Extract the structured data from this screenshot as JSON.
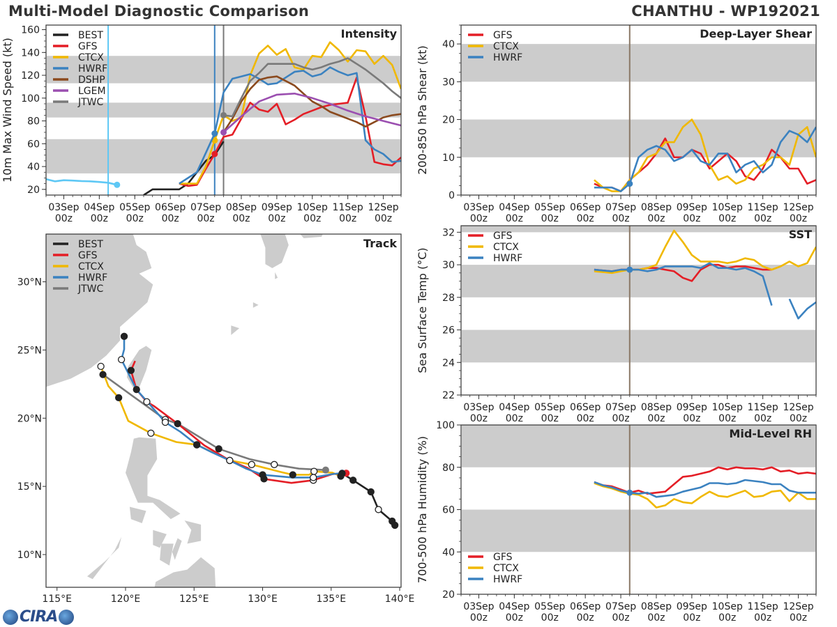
{
  "header": {
    "title": "Multi-Model Diagnostic Comparison",
    "storm": "CHANTHU - WP192021"
  },
  "logo": {
    "text": "CIRA"
  },
  "colors": {
    "BEST": "#222222",
    "GFS": "#e41e26",
    "CTCX": "#f0b800",
    "HWRF": "#3b82c0",
    "DSHP": "#8b4a1e",
    "LGEM": "#9b4fb0",
    "JTWC": "#7a7a7a",
    "prior_HWRF": "#5ec8f5",
    "band": "#cccccc",
    "init_line": "#8a7866"
  },
  "time_ticks": [
    {
      "date": "03Sep",
      "hour": "00z"
    },
    {
      "date": "04Sep",
      "hour": "00z"
    },
    {
      "date": "05Sep",
      "hour": "00z"
    },
    {
      "date": "06Sep",
      "hour": "00z"
    },
    {
      "date": "07Sep",
      "hour": "00z"
    },
    {
      "date": "08Sep",
      "hour": "00z"
    },
    {
      "date": "09Sep",
      "hour": "00z"
    },
    {
      "date": "10Sep",
      "hour": "00z"
    },
    {
      "date": "11Sep",
      "hour": "00z"
    },
    {
      "date": "12Sep",
      "hour": "00z"
    }
  ],
  "chart_data": [
    {
      "id": "intensity",
      "type": "line",
      "title": "Intensity",
      "ylabel": "10m Max Wind Speed (kt)",
      "xlim": [
        "02Sep12z",
        "12Sep12z"
      ],
      "ylim": [
        15,
        164
      ],
      "yticks": [
        20,
        40,
        60,
        80,
        100,
        120,
        140,
        160
      ],
      "bands": [
        [
          34,
          64
        ],
        [
          83,
          96
        ],
        [
          113,
          137
        ]
      ],
      "legend": "top-left",
      "vlines": [
        {
          "time": "04Sep06z",
          "color": "#5ec8f5"
        },
        {
          "time": "07Sep06z",
          "color": "#3b82c0"
        },
        {
          "time": "07Sep12z",
          "color": "#7a7a7a"
        }
      ],
      "series": [
        {
          "color": "#5ec8f5",
          "start": "02Sep12z",
          "step_h": 6,
          "values": [
            29,
            27,
            28,
            27.7,
            27.3,
            27,
            26.5,
            25.8,
            24
          ],
          "marker": "end",
          "legend": false
        },
        {
          "name": "BEST",
          "color": "#222222",
          "start": "05Sep06z",
          "step_h": 6,
          "values": [
            15,
            20,
            20,
            20,
            20,
            25,
            35,
            45,
            50,
            62
          ]
        },
        {
          "name": "GFS",
          "color": "#e41e26",
          "start": "06Sep06z",
          "step_h": 6,
          "values": [
            25,
            23,
            24,
            38,
            51,
            66,
            68,
            82,
            96,
            90,
            88,
            95,
            77,
            81,
            86,
            89,
            92,
            94,
            95,
            96,
            118,
            84,
            44,
            42,
            41,
            48
          ],
          "marker_time": "07Sep06z"
        },
        {
          "name": "CTCX",
          "color": "#f0b800",
          "start": "06Sep06z",
          "step_h": 6,
          "values": [
            25,
            25,
            25,
            40,
            63,
            85,
            80,
            83,
            120,
            139,
            146,
            138,
            143,
            127,
            125,
            137,
            136,
            149,
            142,
            132,
            142,
            141,
            130,
            137,
            129,
            108
          ],
          "marker_time": "07Sep06z"
        },
        {
          "name": "HWRF",
          "color": "#3b82c0",
          "start": "06Sep06z",
          "step_h": 6,
          "values": [
            25,
            30,
            35,
            52,
            69,
            105,
            117,
            119,
            121,
            117,
            112,
            113,
            118,
            123,
            124,
            119,
            121,
            127,
            123,
            120,
            122,
            63,
            55,
            51,
            44,
            45
          ],
          "marker_time": "07Sep06z"
        },
        {
          "name": "DSHP",
          "color": "#8b4a1e",
          "start": "07Sep12z",
          "step_h": 6,
          "values": [
            70,
            82,
            97,
            108,
            116,
            118,
            119,
            115,
            111,
            104,
            97,
            93,
            88,
            85,
            82,
            79,
            75,
            79,
            83,
            85,
            86
          ]
        },
        {
          "name": "LGEM",
          "color": "#9b4fb0",
          "start": "07Sep12z",
          "step_h": 12,
          "values": [
            70,
            84,
            97,
            103,
            104,
            100,
            95,
            89,
            84,
            80,
            76
          ],
          "marker_time": "07Sep12z"
        },
        {
          "name": "JTWC",
          "color": "#7a7a7a",
          "start": "07Sep12z",
          "step_h": 6,
          "values": [
            85,
            84,
            100,
            115,
            122,
            130,
            130,
            130,
            130,
            127,
            125,
            127,
            130,
            132,
            135,
            130,
            125,
            119,
            113,
            106,
            100,
            94,
            89
          ],
          "marker_time": "07Sep12z"
        }
      ]
    },
    {
      "id": "shear",
      "type": "line",
      "title": "Deep-Layer Shear",
      "ylabel": "200-850 hPa Shear (kt)",
      "xlim": [
        "02Sep12z",
        "12Sep12z"
      ],
      "ylim": [
        0,
        45
      ],
      "yticks": [
        0,
        10,
        20,
        30,
        40
      ],
      "bands": [
        [
          10,
          20
        ],
        [
          30,
          40
        ]
      ],
      "legend": "top-left",
      "vlines": [
        {
          "time": "07Sep06z",
          "color": "#8a7866"
        }
      ],
      "series": [
        {
          "name": "GFS",
          "color": "#e41e26",
          "start": "06Sep06z",
          "step_h": 6,
          "values": [
            3,
            2,
            2,
            1,
            4,
            6,
            8,
            11,
            15,
            10,
            10,
            12,
            11,
            7,
            9,
            11,
            9,
            5,
            4,
            7,
            12,
            10,
            7,
            7,
            3,
            4
          ]
        },
        {
          "name": "CTCX",
          "color": "#f0b800",
          "start": "06Sep06z",
          "step_h": 6,
          "values": [
            4,
            2,
            1,
            1,
            4,
            6,
            10,
            11,
            14,
            14,
            18,
            20,
            16,
            8,
            4,
            5,
            3,
            4,
            7,
            8,
            10,
            10,
            8,
            16,
            18,
            10
          ]
        },
        {
          "name": "HWRF",
          "color": "#3b82c0",
          "start": "06Sep06z",
          "step_h": 6,
          "values": [
            2,
            2,
            2,
            1,
            3,
            10,
            12,
            13,
            12,
            9,
            10,
            12,
            9,
            8,
            11,
            11,
            6,
            8,
            9,
            6,
            8,
            14,
            17,
            16,
            14,
            18
          ],
          "marker_time": "07Sep06z"
        }
      ]
    },
    {
      "id": "sst",
      "type": "line",
      "title": "SST",
      "ylabel": "Sea Surface Temp (°C)",
      "xlim": [
        "02Sep12z",
        "12Sep12z"
      ],
      "ylim": [
        22,
        32.4
      ],
      "yticks": [
        22,
        24,
        26,
        28,
        30,
        32
      ],
      "bands": [
        [
          24,
          26
        ],
        [
          28,
          30
        ],
        [
          32,
          32.4
        ]
      ],
      "legend": "top-left",
      "vlines": [
        {
          "time": "07Sep06z",
          "color": "#8a7866"
        }
      ],
      "series": [
        {
          "name": "GFS",
          "color": "#e41e26",
          "start": "06Sep06z",
          "step_h": 6,
          "values": [
            29.7,
            29.65,
            29.6,
            29.7,
            29.7,
            29.7,
            29.8,
            29.8,
            29.7,
            29.6,
            29.2,
            29.0,
            29.7,
            30.0,
            30.0,
            29.8,
            29.9,
            29.9,
            29.8,
            29.7,
            29.7
          ]
        },
        {
          "name": "CTCX",
          "color": "#f0b800",
          "start": "06Sep06z",
          "step_h": 6,
          "values": [
            29.6,
            29.55,
            29.5,
            29.6,
            29.7,
            29.7,
            29.8,
            30.0,
            31.1,
            32.1,
            31.4,
            30.6,
            30.2,
            30.2,
            30.2,
            30.1,
            30.2,
            30.4,
            30.3,
            29.9,
            29.7,
            29.9,
            30.2,
            29.9,
            30.1,
            31.1
          ]
        },
        {
          "name": "HWRF",
          "color": "#3b82c0",
          "start": "06Sep06z",
          "step_h": 6,
          "values": [
            29.7,
            29.65,
            29.6,
            29.7,
            29.7,
            29.7,
            29.6,
            29.7,
            29.9,
            29.9,
            29.9,
            29.9,
            29.8,
            30.1,
            29.8,
            29.8,
            29.7,
            29.8,
            29.6,
            29.3,
            27.5,
            null,
            27.9,
            26.7,
            27.3,
            27.7
          ],
          "marker_time": "07Sep06z"
        }
      ]
    },
    {
      "id": "rh",
      "type": "line",
      "title": "Mid-Level RH",
      "ylabel": "700-500 hPa Humidity (%)",
      "xlim": [
        "02Sep12z",
        "12Sep12z"
      ],
      "ylim": [
        20,
        100
      ],
      "yticks": [
        20,
        40,
        60,
        80,
        100
      ],
      "bands": [
        [
          40,
          60
        ],
        [
          80,
          100
        ]
      ],
      "legend": "bottom-left",
      "vlines": [
        {
          "time": "07Sep06z",
          "color": "#8a7866"
        }
      ],
      "series": [
        {
          "name": "GFS",
          "color": "#e41e26",
          "start": "06Sep06z",
          "step_h": 6,
          "values": [
            73,
            71.5,
            71,
            69.5,
            68,
            69,
            67.5,
            68,
            68.5,
            72,
            75.5,
            76,
            77,
            78,
            80,
            79,
            80,
            79.5,
            79.5,
            79,
            80,
            78,
            78.5,
            77,
            77.5,
            77
          ]
        },
        {
          "name": "CTCX",
          "color": "#f0b800",
          "start": "06Sep06z",
          "step_h": 6,
          "values": [
            72.5,
            71,
            70,
            68.5,
            67.5,
            67,
            65,
            61,
            62,
            65,
            63.5,
            63,
            66,
            68.5,
            66.5,
            66,
            67.5,
            69,
            66,
            66.5,
            68.5,
            69,
            64,
            68,
            65,
            65
          ]
        },
        {
          "name": "HWRF",
          "color": "#3b82c0",
          "start": "06Sep06z",
          "step_h": 6,
          "values": [
            73,
            71.5,
            70.5,
            69,
            68,
            67.5,
            68,
            66,
            66.5,
            67,
            68.5,
            69.5,
            70.5,
            72.5,
            72.5,
            72,
            72.5,
            74,
            73.5,
            73,
            72,
            72,
            69,
            68,
            68,
            68
          ],
          "marker_time": "07Sep06z"
        }
      ]
    },
    {
      "id": "track",
      "type": "map",
      "title": "Track",
      "legend": "top-left",
      "lon_range": [
        114.2,
        140.1
      ],
      "lat_range": [
        7.6,
        33.5
      ],
      "lon_ticks": [
        {
          "v": 115,
          "label": "115°E"
        },
        {
          "v": 120,
          "label": "120°E"
        },
        {
          "v": 125,
          "label": "125°E"
        },
        {
          "v": 130,
          "label": "130°E"
        },
        {
          "v": 135,
          "label": "135°E"
        },
        {
          "v": 140,
          "label": "140°E"
        }
      ],
      "lat_ticks": [
        {
          "v": 10,
          "label": "10°N"
        },
        {
          "v": 15,
          "label": "15°N"
        },
        {
          "v": 20,
          "label": "20°N"
        },
        {
          "v": 25,
          "label": "25°N"
        },
        {
          "v": 30,
          "label": "30°N"
        }
      ],
      "tracks": [
        {
          "name": "BEST",
          "color": "#222222",
          "points": [
            [
              139.65,
              12.15
            ],
            [
              139.45,
              12.45
            ],
            [
              138.45,
              13.3
            ],
            [
              137.9,
              14.6
            ],
            [
              136.6,
              15.45
            ],
            [
              135.8,
              15.95
            ]
          ]
        },
        {
          "name": "GFS",
          "color": "#e41e26",
          "init_marker": true,
          "points": [
            [
              136.1,
              15.97
            ],
            [
              135.1,
              15.9
            ],
            [
              133.7,
              15.45
            ],
            [
              132.1,
              15.25
            ],
            [
              130.1,
              15.55
            ],
            [
              128.9,
              16.35
            ],
            [
              127.6,
              16.9
            ],
            [
              125.75,
              18.0
            ],
            [
              123.8,
              19.6
            ],
            [
              122.05,
              20.9
            ],
            [
              121.55,
              21.2
            ],
            [
              120.8,
              22.1
            ],
            [
              120.4,
              23.5
            ],
            [
              120.7,
              24.2
            ]
          ]
        },
        {
          "name": "CTCX",
          "color": "#f0b800",
          "points": [
            [
              135.7,
              15.75
            ],
            [
              135.1,
              16.0
            ],
            [
              133.75,
              16.1
            ],
            [
              133.4,
              15.85
            ],
            [
              132.2,
              15.85
            ],
            [
              131.35,
              16.05
            ],
            [
              129.2,
              16.6
            ],
            [
              127.6,
              16.9
            ],
            [
              125.2,
              18.05
            ],
            [
              123.7,
              18.25
            ],
            [
              121.85,
              18.9
            ],
            [
              120.2,
              19.8
            ],
            [
              119.5,
              21.5
            ],
            [
              118.75,
              22.35
            ],
            [
              118.2,
              23.8
            ]
          ]
        },
        {
          "name": "HWRF",
          "color": "#3b82c0",
          "init_marker": true,
          "points": [
            [
              135.8,
              15.97
            ],
            [
              135.1,
              15.9
            ],
            [
              133.7,
              15.65
            ],
            [
              132.15,
              15.65
            ],
            [
              130.0,
              15.85
            ],
            [
              128.8,
              16.3
            ],
            [
              127.6,
              16.9
            ],
            [
              126.3,
              17.5
            ],
            [
              125.2,
              18.05
            ],
            [
              124.0,
              19.0
            ],
            [
              122.9,
              19.7
            ],
            [
              121.6,
              21.2
            ],
            [
              120.8,
              22.1
            ],
            [
              120.2,
              23.3
            ],
            [
              119.7,
              24.3
            ],
            [
              119.9,
              25.05
            ],
            [
              119.9,
              26.0
            ]
          ]
        },
        {
          "name": "JTWC",
          "color": "#7a7a7a",
          "init_marker": true,
          "points": [
            [
              134.6,
              16.2
            ],
            [
              132.65,
              16.3
            ],
            [
              130.85,
              16.6
            ],
            [
              129.05,
              17.0
            ],
            [
              126.8,
              17.75
            ],
            [
              123.8,
              19.6
            ],
            [
              122.9,
              19.9
            ],
            [
              120.55,
              21.6
            ],
            [
              118.35,
              23.2
            ]
          ]
        }
      ]
    }
  ]
}
